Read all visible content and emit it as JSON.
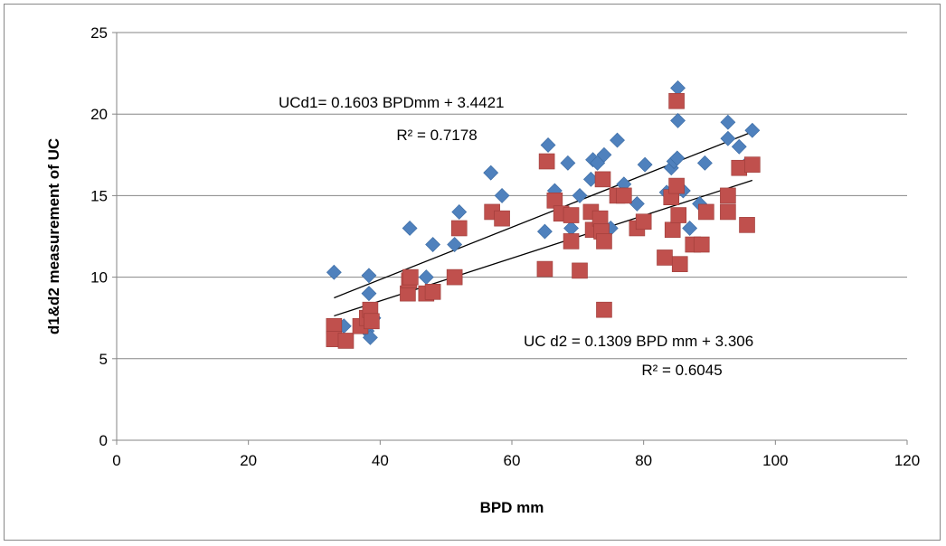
{
  "chart_data": {
    "type": "scatter",
    "title": "",
    "xlabel": "BPD mm",
    "ylabel": "d1&d2 measurement of UC",
    "xlim": [
      0,
      120
    ],
    "ylim": [
      0,
      25
    ],
    "x_ticks": [
      "0",
      "20",
      "40",
      "60",
      "80",
      "100",
      "120"
    ],
    "y_ticks": [
      "0",
      "5",
      "10",
      "15",
      "20",
      "25"
    ],
    "grid": "horizontal",
    "legend": "none",
    "series": [
      {
        "marker": "diamond",
        "color": "#4F81BD",
        "points": [
          [
            33,
            10.3
          ],
          [
            34.5,
            7
          ],
          [
            38,
            6.7
          ],
          [
            38.3,
            10.1
          ],
          [
            38.3,
            9
          ],
          [
            38.5,
            6.3
          ],
          [
            39,
            7.5
          ],
          [
            44.5,
            13
          ],
          [
            47,
            10
          ],
          [
            48,
            12
          ],
          [
            51.3,
            12
          ],
          [
            52,
            14
          ],
          [
            56.8,
            16.4
          ],
          [
            58.5,
            15
          ],
          [
            65,
            12.8
          ],
          [
            65.5,
            18.1
          ],
          [
            66.5,
            15.3
          ],
          [
            68.5,
            17
          ],
          [
            69,
            13
          ],
          [
            70.3,
            15
          ],
          [
            72,
            16
          ],
          [
            72.3,
            17.2
          ],
          [
            73,
            17
          ],
          [
            74,
            17.5
          ],
          [
            75,
            13
          ],
          [
            76,
            18.4
          ],
          [
            77,
            15.7
          ],
          [
            79,
            14.5
          ],
          [
            80.2,
            16.9
          ],
          [
            83.5,
            15.2
          ],
          [
            84.2,
            16.7
          ],
          [
            84.6,
            17.1
          ],
          [
            85.1,
            17.3
          ],
          [
            85.2,
            21.6
          ],
          [
            85.2,
            19.6
          ],
          [
            86,
            15.3
          ],
          [
            87,
            13
          ],
          [
            88.5,
            14.5
          ],
          [
            89.3,
            17
          ],
          [
            92.8,
            19.5
          ],
          [
            92.8,
            18.5
          ],
          [
            94.5,
            18
          ],
          [
            95.5,
            16.9
          ],
          [
            96.5,
            19
          ]
        ]
      },
      {
        "marker": "square",
        "color": "#C0504D",
        "points": [
          [
            33,
            7
          ],
          [
            33,
            6.2
          ],
          [
            34.8,
            6.1
          ],
          [
            37,
            7
          ],
          [
            38,
            7.5
          ],
          [
            38.5,
            8
          ],
          [
            38.7,
            7.3
          ],
          [
            44.2,
            9
          ],
          [
            44.4,
            9.8
          ],
          [
            44.6,
            10
          ],
          [
            47,
            9
          ],
          [
            48,
            9.1
          ],
          [
            51.3,
            10
          ],
          [
            52,
            13
          ],
          [
            57,
            14
          ],
          [
            58.5,
            13.6
          ],
          [
            65,
            10.5
          ],
          [
            65.3,
            17.1
          ],
          [
            66.5,
            14.7
          ],
          [
            67.5,
            13.9
          ],
          [
            69,
            13.8
          ],
          [
            69,
            12.2
          ],
          [
            70.3,
            10.4
          ],
          [
            72,
            14
          ],
          [
            72.3,
            12.9
          ],
          [
            73.4,
            13.6
          ],
          [
            73.6,
            12.8
          ],
          [
            73.8,
            16
          ],
          [
            74,
            12.2
          ],
          [
            74,
            8
          ],
          [
            76,
            15
          ],
          [
            77,
            15
          ],
          [
            79,
            13
          ],
          [
            80,
            13.4
          ],
          [
            83.2,
            11.2
          ],
          [
            84.2,
            14.9
          ],
          [
            84.4,
            12.9
          ],
          [
            85,
            15.6
          ],
          [
            85,
            20.8
          ],
          [
            85.3,
            13.8
          ],
          [
            85.5,
            10.8
          ],
          [
            87.5,
            12
          ],
          [
            88.8,
            12
          ],
          [
            89.5,
            14
          ],
          [
            92.8,
            14
          ],
          [
            92.8,
            15
          ],
          [
            94.5,
            16.7
          ],
          [
            95.7,
            13.2
          ],
          [
            96.5,
            16.9
          ]
        ]
      }
    ],
    "trendlines": [
      {
        "slope": 0.1603,
        "intercept": 3.4421,
        "x_range": [
          33,
          96.5
        ],
        "color": "#000000"
      },
      {
        "slope": 0.1309,
        "intercept": 3.306,
        "x_range": [
          33,
          96.5
        ],
        "color": "#000000"
      }
    ],
    "annotations": [
      {
        "lines": [
          "UCd1= 0.1603 BPDmm + 3.4421",
          "R² = 0.7178"
        ],
        "position": "upper-left",
        "align": [
          "start",
          "middle"
        ]
      },
      {
        "lines": [
          "UC d2 = 0.1309 BPD mm + 3.306",
          "R² = 0.6045"
        ],
        "position": "lower-right",
        "align": [
          "start",
          "middle"
        ]
      }
    ]
  }
}
